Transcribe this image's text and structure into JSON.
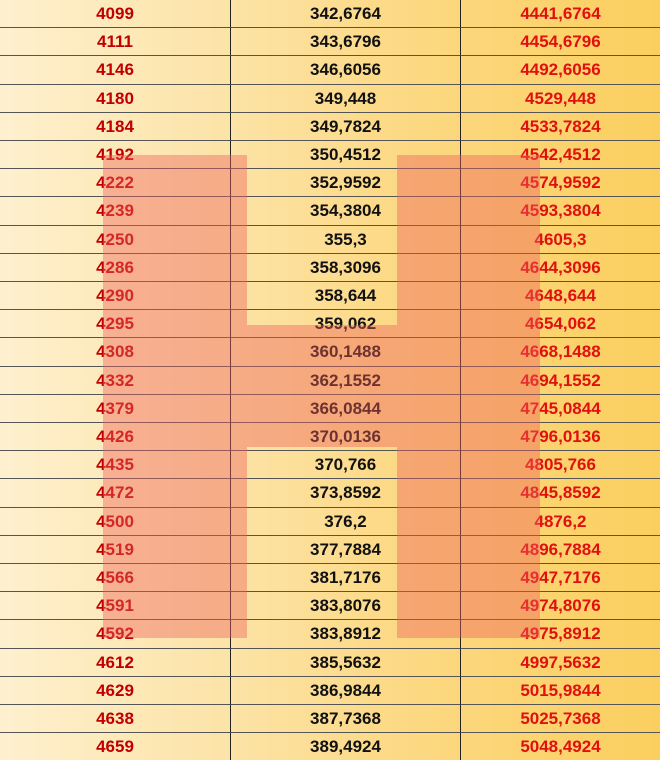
{
  "table": {
    "rows": [
      [
        "4099",
        "342,6764",
        "4441,6764"
      ],
      [
        "4111",
        "343,6796",
        "4454,6796"
      ],
      [
        "4146",
        "346,6056",
        "4492,6056"
      ],
      [
        "4180",
        "349,448",
        "4529,448"
      ],
      [
        "4184",
        "349,7824",
        "4533,7824"
      ],
      [
        "4192",
        "350,4512",
        "4542,4512"
      ],
      [
        "4222",
        "352,9592",
        "4574,9592"
      ],
      [
        "4239",
        "354,3804",
        "4593,3804"
      ],
      [
        "4250",
        "355,3",
        "4605,3"
      ],
      [
        "4286",
        "358,3096",
        "4644,3096"
      ],
      [
        "4290",
        "358,644",
        "4648,644"
      ],
      [
        "4295",
        "359,062",
        "4654,062"
      ],
      [
        "4308",
        "360,1488",
        "4668,1488"
      ],
      [
        "4332",
        "362,1552",
        "4694,1552"
      ],
      [
        "4379",
        "366,0844",
        "4745,0844"
      ],
      [
        "4426",
        "370,0136",
        "4796,0136"
      ],
      [
        "4435",
        "370,766",
        "4805,766"
      ],
      [
        "4472",
        "373,8592",
        "4845,8592"
      ],
      [
        "4500",
        "376,2",
        "4876,2"
      ],
      [
        "4519",
        "377,7884",
        "4896,7884"
      ],
      [
        "4566",
        "381,7176",
        "4947,7176"
      ],
      [
        "4591",
        "383,8076",
        "4974,8076"
      ],
      [
        "4592",
        "383,8912",
        "4975,8912"
      ],
      [
        "4612",
        "385,5632",
        "4997,5632"
      ],
      [
        "4629",
        "386,9844",
        "5015,9844"
      ],
      [
        "4638",
        "387,7368",
        "5025,7368"
      ],
      [
        "4659",
        "389,4924",
        "5048,4924"
      ]
    ]
  }
}
